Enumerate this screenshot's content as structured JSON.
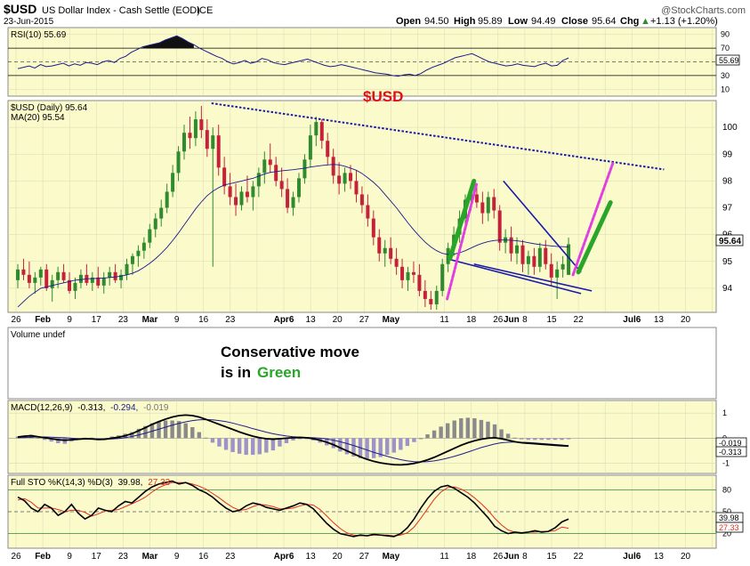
{
  "header": {
    "symbol": "$USD",
    "name": "US Dollar Index - Cash Settle (EOD)",
    "exchange": "ICE",
    "date": "23-Jun-2015",
    "open_label": "Open",
    "open": "94.50",
    "high_label": "High",
    "high": "95.89",
    "low_label": "Low",
    "low": "94.49",
    "close_label": "Close",
    "close": "95.64",
    "chg_label": "Chg",
    "chg": "+1.13 (+1.20%)",
    "chg_arrow": "▲",
    "watermark": "@StockCharts.com"
  },
  "colors": {
    "panel_bg": "#fbfacb",
    "gridline": "#d9d9b5",
    "up_candle": "#2e8b2e",
    "down_candle": "#c4223b",
    "ma_line": "#1c1c8a",
    "trend_blue": "#1a1aa8",
    "green_arrow": "#29a52a",
    "pink_arrow": "#e040e0",
    "usd_label": "#e01010",
    "rsi_fill": "#111111"
  },
  "x_axis": {
    "labels": [
      {
        "text": "26",
        "bold": false
      },
      {
        "text": "Feb",
        "bold": true
      },
      {
        "text": "9",
        "bold": false
      },
      {
        "text": "17",
        "bold": false
      },
      {
        "text": "23",
        "bold": false
      },
      {
        "text": "Mar",
        "bold": true
      },
      {
        "text": "9",
        "bold": false
      },
      {
        "text": "16",
        "bold": false
      },
      {
        "text": "23",
        "bold": false
      },
      {
        "text": "Apr6",
        "bold": true
      },
      {
        "text": "13",
        "bold": false
      },
      {
        "text": "20",
        "bold": false
      },
      {
        "text": "27",
        "bold": false
      },
      {
        "text": "May",
        "bold": true
      },
      {
        "text": "11",
        "bold": false
      },
      {
        "text": "18",
        "bold": false
      },
      {
        "text": "26",
        "bold": false
      },
      {
        "text": "Jun",
        "bold": true
      },
      {
        "text": "8",
        "bold": false
      },
      {
        "text": "15",
        "bold": false
      },
      {
        "text": "22",
        "bold": false
      },
      {
        "text": "Jul6",
        "bold": true
      },
      {
        "text": "13",
        "bold": false
      },
      {
        "text": "20",
        "bold": false
      }
    ],
    "label_weeks": [
      0,
      1,
      2,
      3,
      4,
      5,
      6,
      7,
      8,
      10,
      11,
      12,
      13,
      14,
      16,
      17,
      18,
      18.5,
      19,
      20,
      21,
      23,
      24,
      25
    ]
  },
  "rsi_panel": {
    "label": "RSI(10) 55.69",
    "ticks": [
      "90",
      "70",
      "50",
      "30",
      "10"
    ],
    "tick_values": [
      90,
      70,
      50,
      30,
      10
    ],
    "current_tag": "55.69",
    "current_value": 55.69
  },
  "price_panel": {
    "legend_symbol": "$USD (Daily) 95.64",
    "legend_ma": "MA(20) 95.54",
    "big_label": "$USD",
    "ticks": [
      "100",
      "99",
      "98",
      "97",
      "96",
      "95",
      "94"
    ],
    "tick_values": [
      100,
      99,
      98,
      97,
      96,
      95,
      94
    ],
    "current_tag": "95.64",
    "ylim": [
      93.1,
      101.0
    ]
  },
  "volume_panel": {
    "label": "Volume undef",
    "annotation_line1": "Conservative move",
    "annotation_line2_prefix": "is in",
    "annotation_line2_green": "Green"
  },
  "macd_panel": {
    "label_prefix": "MACD(12,26,9)",
    "macd_value": "-0.313,",
    "signal_value": "-0.294,",
    "hist_value": "-0.019",
    "ticks": [
      "1",
      "0",
      "-1"
    ],
    "tick_values": [
      1,
      0,
      -1
    ],
    "tag_hist": "-0.019",
    "tag_macd": "-0.313",
    "ylim": [
      -1.4,
      1.5
    ]
  },
  "sto_panel": {
    "label_prefix": "Full STO %K(14,3) %D(3)",
    "k_value": "39.98,",
    "d_value": "27.33",
    "ticks": [
      "80",
      "50",
      "20"
    ],
    "tick_values": [
      80,
      50,
      20
    ],
    "tag_k": "39.98",
    "tag_d": "27.33"
  },
  "chart_data": {
    "type": "candlestick",
    "title": "$USD US Dollar Index - Cash Settle (EOD) ICE",
    "date": "23-Jun-2015",
    "x_range": [
      "2015-01-26",
      "2015-06-23"
    ],
    "price_ylim": [
      93.1,
      101.0
    ],
    "last": {
      "open": 94.5,
      "high": 95.89,
      "low": 94.49,
      "close": 95.64
    },
    "ohlc": [
      [
        94.3,
        94.9,
        94.0,
        94.7
      ],
      [
        94.7,
        95.1,
        94.3,
        94.5
      ],
      [
        94.5,
        95.0,
        94.0,
        94.2
      ],
      [
        94.2,
        94.6,
        93.8,
        94.4
      ],
      [
        94.4,
        94.8,
        94.1,
        94.7
      ],
      [
        94.7,
        94.9,
        93.9,
        94.0
      ],
      [
        94.0,
        94.5,
        93.5,
        94.3
      ],
      [
        94.3,
        94.8,
        94.0,
        94.6
      ],
      [
        94.6,
        94.9,
        94.2,
        94.3
      ],
      [
        94.3,
        94.6,
        93.8,
        93.9
      ],
      [
        93.9,
        94.4,
        93.6,
        94.2
      ],
      [
        94.2,
        94.7,
        94.0,
        94.5
      ],
      [
        94.5,
        94.9,
        94.1,
        94.2
      ],
      [
        94.2,
        94.6,
        93.9,
        94.4
      ],
      [
        94.4,
        94.8,
        94.0,
        94.1
      ],
      [
        94.1,
        94.6,
        93.8,
        94.4
      ],
      [
        94.4,
        94.8,
        94.1,
        94.6
      ],
      [
        94.6,
        94.9,
        94.2,
        94.3
      ],
      [
        94.3,
        94.7,
        94.0,
        94.5
      ],
      [
        94.5,
        95.1,
        94.3,
        94.9
      ],
      [
        94.9,
        95.3,
        94.5,
        95.2
      ],
      [
        95.2,
        95.6,
        94.8,
        95.4
      ],
      [
        95.4,
        95.9,
        95.1,
        95.7
      ],
      [
        95.7,
        96.4,
        95.5,
        96.2
      ],
      [
        96.2,
        96.8,
        95.9,
        96.6
      ],
      [
        96.6,
        97.3,
        96.3,
        97.0
      ],
      [
        97.0,
        97.9,
        96.8,
        97.6
      ],
      [
        97.6,
        98.6,
        97.4,
        98.3
      ],
      [
        98.3,
        99.3,
        98.0,
        99.1
      ],
      [
        99.1,
        100.1,
        98.8,
        99.8
      ],
      [
        99.8,
        100.4,
        99.2,
        99.6
      ],
      [
        99.6,
        100.6,
        99.3,
        100.3
      ],
      [
        100.3,
        100.8,
        99.6,
        99.9
      ],
      [
        99.9,
        100.3,
        98.9,
        99.2
      ],
      [
        99.2,
        100.0,
        94.8,
        99.7
      ],
      [
        99.7,
        100.1,
        98.2,
        98.5
      ],
      [
        98.5,
        98.9,
        97.5,
        97.8
      ],
      [
        97.8,
        98.3,
        97.1,
        97.4
      ],
      [
        97.4,
        97.9,
        96.7,
        97.1
      ],
      [
        97.1,
        97.8,
        96.9,
        97.6
      ],
      [
        97.6,
        98.2,
        97.2,
        97.4
      ],
      [
        97.4,
        98.0,
        96.9,
        97.8
      ],
      [
        97.8,
        98.5,
        97.4,
        98.3
      ],
      [
        98.3,
        99.1,
        97.9,
        98.8
      ],
      [
        98.8,
        99.4,
        98.3,
        98.6
      ],
      [
        98.6,
        98.9,
        97.8,
        98.0
      ],
      [
        98.0,
        98.5,
        97.4,
        97.7
      ],
      [
        97.7,
        98.1,
        96.8,
        97.0
      ],
      [
        97.0,
        97.6,
        96.7,
        97.4
      ],
      [
        97.4,
        98.3,
        97.2,
        98.1
      ],
      [
        98.1,
        99.0,
        97.9,
        98.8
      ],
      [
        98.8,
        100.1,
        98.5,
        99.7
      ],
      [
        99.7,
        100.4,
        99.3,
        100.2
      ],
      [
        100.2,
        100.3,
        99.2,
        99.5
      ],
      [
        99.5,
        99.8,
        98.6,
        98.9
      ],
      [
        98.9,
        99.2,
        97.9,
        98.2
      ],
      [
        98.2,
        98.7,
        97.5,
        97.9
      ],
      [
        97.9,
        98.5,
        97.6,
        98.3
      ],
      [
        98.3,
        98.6,
        97.7,
        98.0
      ],
      [
        98.0,
        98.4,
        97.2,
        97.5
      ],
      [
        97.5,
        97.8,
        96.8,
        97.1
      ],
      [
        97.1,
        97.5,
        96.3,
        96.6
      ],
      [
        96.6,
        96.9,
        95.6,
        95.9
      ],
      [
        95.9,
        96.2,
        95.0,
        95.3
      ],
      [
        95.3,
        95.8,
        94.8,
        95.5
      ],
      [
        95.5,
        95.9,
        94.9,
        95.1
      ],
      [
        95.1,
        95.5,
        94.5,
        94.8
      ],
      [
        94.8,
        95.1,
        94.0,
        94.3
      ],
      [
        94.3,
        94.8,
        93.9,
        94.6
      ],
      [
        94.6,
        95.0,
        94.2,
        94.5
      ],
      [
        94.5,
        94.9,
        93.7,
        93.9
      ],
      [
        93.9,
        94.3,
        93.3,
        93.6
      ],
      [
        93.6,
        93.9,
        93.2,
        93.4
      ],
      [
        93.4,
        94.1,
        93.2,
        93.9
      ],
      [
        93.9,
        95.1,
        93.7,
        94.9
      ],
      [
        94.9,
        95.7,
        94.6,
        95.5
      ],
      [
        95.5,
        96.3,
        95.2,
        96.0
      ],
      [
        96.0,
        96.9,
        95.7,
        96.6
      ],
      [
        96.6,
        97.5,
        96.3,
        97.3
      ],
      [
        97.3,
        97.8,
        96.9,
        97.5
      ],
      [
        97.5,
        97.9,
        97.0,
        97.2
      ],
      [
        97.2,
        97.6,
        96.4,
        96.8
      ],
      [
        96.8,
        97.6,
        96.5,
        97.4
      ],
      [
        97.4,
        97.7,
        96.6,
        96.9
      ],
      [
        96.9,
        97.1,
        95.4,
        95.7
      ],
      [
        95.7,
        96.2,
        95.3,
        95.9
      ],
      [
        95.9,
        96.3,
        95.0,
        95.3
      ],
      [
        95.3,
        95.9,
        94.9,
        95.6
      ],
      [
        95.6,
        95.8,
        94.6,
        94.9
      ],
      [
        94.9,
        95.4,
        94.5,
        95.2
      ],
      [
        95.2,
        95.5,
        94.5,
        94.8
      ],
      [
        94.8,
        95.7,
        94.6,
        95.5
      ],
      [
        95.5,
        95.8,
        94.7,
        94.9
      ],
      [
        94.9,
        95.3,
        94.1,
        94.4
      ],
      [
        94.4,
        95.0,
        93.6,
        94.7
      ],
      [
        94.7,
        95.2,
        94.4,
        94.9
      ],
      [
        94.5,
        95.89,
        94.49,
        95.64
      ]
    ],
    "ma20": [
      93.3,
      93.5,
      93.7,
      93.85,
      94.0,
      94.05,
      94.1,
      94.15,
      94.2,
      94.25,
      94.3,
      94.32,
      94.35,
      94.36,
      94.37,
      94.38,
      94.4,
      94.42,
      94.45,
      94.5,
      94.56,
      94.65,
      94.78,
      94.93,
      95.1,
      95.3,
      95.52,
      95.78,
      96.06,
      96.36,
      96.66,
      96.96,
      97.22,
      97.45,
      97.62,
      97.75,
      97.85,
      97.9,
      97.95,
      98.0,
      98.05,
      98.1,
      98.18,
      98.26,
      98.32,
      98.35,
      98.38,
      98.4,
      98.42,
      98.45,
      98.48,
      98.52,
      98.55,
      98.58,
      98.6,
      98.62,
      98.6,
      98.55,
      98.48,
      98.4,
      98.28,
      98.12,
      97.95,
      97.75,
      97.5,
      97.25,
      97.0,
      96.72,
      96.44,
      96.18,
      95.94,
      95.72,
      95.54,
      95.4,
      95.3,
      95.26,
      95.27,
      95.32,
      95.4,
      95.5,
      95.6,
      95.68,
      95.74,
      95.78,
      95.8,
      95.8,
      95.79,
      95.77,
      95.74,
      95.7,
      95.66,
      95.63,
      95.6,
      95.58,
      95.56,
      95.55,
      95.54
    ],
    "trendlines": [
      {
        "name": "downtrend",
        "style": "dotted",
        "from": {
          "week": 7.3,
          "value": 100.9
        },
        "to": {
          "week": 24.2,
          "value": 98.43
        }
      },
      {
        "name": "wedge-top",
        "style": "solid",
        "from": {
          "week": 18.2,
          "value": 98.0
        },
        "to": {
          "week": 21.1,
          "value": 94.6
        }
      },
      {
        "name": "wedge-bottom",
        "style": "solid",
        "from": {
          "week": 16.1,
          "value": 95.1
        },
        "to": {
          "week": 21.1,
          "value": 93.8
        }
      },
      {
        "name": "wedge-bottom-inner",
        "style": "solid",
        "from": {
          "week": 17.1,
          "value": 94.9
        },
        "to": {
          "week": 21.5,
          "value": 93.9
        }
      }
    ],
    "arrows": [
      {
        "name": "green-rally",
        "color": "green",
        "from": {
          "week": 16.2,
          "value": 95.1
        },
        "to": {
          "week": 17.1,
          "value": 98.0
        }
      },
      {
        "name": "pink-rally",
        "color": "pink",
        "from": {
          "week": 16.1,
          "value": 93.6
        },
        "to": {
          "week": 17.2,
          "value": 97.9
        }
      },
      {
        "name": "green-projection",
        "color": "green",
        "from": {
          "week": 21.0,
          "value": 94.6
        },
        "to": {
          "week": 22.2,
          "value": 97.2
        }
      },
      {
        "name": "pink-projection",
        "color": "pink",
        "from": {
          "week": 20.8,
          "value": 94.5
        },
        "to": {
          "week": 22.3,
          "value": 98.7
        }
      }
    ],
    "rsi": [
      40,
      42,
      44,
      41,
      46,
      43,
      44,
      46,
      48,
      44,
      47,
      45,
      49,
      48,
      46,
      50,
      52,
      49,
      55,
      58,
      64,
      68,
      72,
      74,
      76,
      78,
      82,
      85,
      88,
      84,
      79,
      75,
      70,
      66,
      62,
      58,
      55,
      50,
      47,
      49,
      52,
      48,
      50,
      55,
      53,
      49,
      47,
      46,
      48,
      50,
      52,
      54,
      51,
      48,
      45,
      43,
      44,
      46,
      44,
      42,
      40,
      38,
      36,
      34,
      33,
      32,
      30,
      29,
      31,
      32,
      30,
      33,
      38,
      42,
      45,
      48,
      52,
      56,
      58,
      60,
      62,
      58,
      54,
      50,
      48,
      46,
      44,
      45,
      47,
      45,
      44,
      43,
      46,
      48,
      44,
      45,
      52,
      55.69
    ],
    "macd": {
      "macd": [
        0.05,
        0.08,
        0.1,
        0.06,
        0.02,
        -0.02,
        -0.06,
        -0.08,
        -0.06,
        -0.04,
        -0.02,
        -0.03,
        -0.05,
        -0.04,
        0.0,
        0.04,
        0.1,
        0.18,
        0.3,
        0.42,
        0.55,
        0.66,
        0.76,
        0.84,
        0.9,
        0.92,
        0.9,
        0.84,
        0.75,
        0.65,
        0.55,
        0.45,
        0.35,
        0.25,
        0.16,
        0.08,
        0.02,
        -0.02,
        -0.04,
        -0.02,
        0.0,
        0.02,
        0.03,
        0.02,
        -0.02,
        -0.08,
        -0.16,
        -0.26,
        -0.38,
        -0.5,
        -0.62,
        -0.74,
        -0.84,
        -0.92,
        -0.98,
        -1.02,
        -1.05,
        -1.06,
        -1.04,
        -1.0,
        -0.94,
        -0.86,
        -0.76,
        -0.64,
        -0.52,
        -0.4,
        -0.28,
        -0.18,
        -0.1,
        -0.04,
        0.0,
        0.02,
        -0.02,
        -0.08,
        -0.14,
        -0.18,
        -0.2,
        -0.22,
        -0.24,
        -0.26,
        -0.28,
        -0.3,
        -0.313
      ],
      "signal": [
        0.02,
        0.03,
        0.04,
        0.05,
        0.05,
        0.04,
        0.03,
        0.02,
        0.0,
        -0.02,
        -0.03,
        -0.04,
        -0.04,
        -0.04,
        -0.03,
        -0.01,
        0.02,
        0.07,
        0.13,
        0.2,
        0.28,
        0.36,
        0.44,
        0.52,
        0.59,
        0.65,
        0.7,
        0.73,
        0.74,
        0.73,
        0.7,
        0.66,
        0.6,
        0.53,
        0.46,
        0.38,
        0.31,
        0.24,
        0.18,
        0.13,
        0.09,
        0.06,
        0.04,
        0.03,
        0.02,
        0.0,
        -0.03,
        -0.08,
        -0.14,
        -0.21,
        -0.29,
        -0.38,
        -0.47,
        -0.56,
        -0.64,
        -0.72,
        -0.79,
        -0.85,
        -0.9,
        -0.93,
        -0.94,
        -0.93,
        -0.9,
        -0.85,
        -0.79,
        -0.72,
        -0.64,
        -0.55,
        -0.46,
        -0.37,
        -0.3,
        -0.23,
        -0.18,
        -0.16,
        -0.15,
        -0.16,
        -0.17,
        -0.19,
        -0.21,
        -0.23,
        -0.25,
        -0.27,
        -0.294
      ]
    },
    "stochastic": {
      "k": [
        70,
        65,
        55,
        50,
        60,
        55,
        45,
        50,
        60,
        48,
        40,
        45,
        55,
        52,
        50,
        58,
        64,
        62,
        70,
        78,
        84,
        88,
        90,
        92,
        88,
        90,
        86,
        80,
        76,
        70,
        62,
        55,
        50,
        52,
        58,
        62,
        60,
        56,
        54,
        52,
        55,
        58,
        62,
        60,
        54,
        44,
        34,
        26,
        20,
        18,
        16,
        18,
        17,
        19,
        18,
        17,
        16,
        20,
        28,
        40,
        55,
        68,
        78,
        84,
        86,
        82,
        76,
        70,
        62,
        52,
        42,
        30,
        24,
        20,
        22,
        21,
        22,
        24,
        22,
        23,
        28,
        36,
        39.98
      ],
      "d": [
        66,
        68,
        63,
        55,
        55,
        55,
        53,
        50,
        52,
        52,
        49,
        44,
        47,
        51,
        52,
        53,
        57,
        61,
        65,
        70,
        77,
        83,
        87,
        90,
        90,
        90,
        88,
        85,
        81,
        75,
        69,
        62,
        56,
        52,
        53,
        57,
        60,
        59,
        57,
        54,
        54,
        55,
        58,
        60,
        59,
        53,
        44,
        35,
        27,
        21,
        18,
        17,
        17,
        18,
        18,
        18,
        17,
        18,
        21,
        29,
        41,
        54,
        67,
        77,
        83,
        84,
        81,
        76,
        69,
        61,
        52,
        41,
        32,
        25,
        22,
        21,
        22,
        22,
        23,
        23,
        24,
        29,
        27.33
      ]
    }
  }
}
